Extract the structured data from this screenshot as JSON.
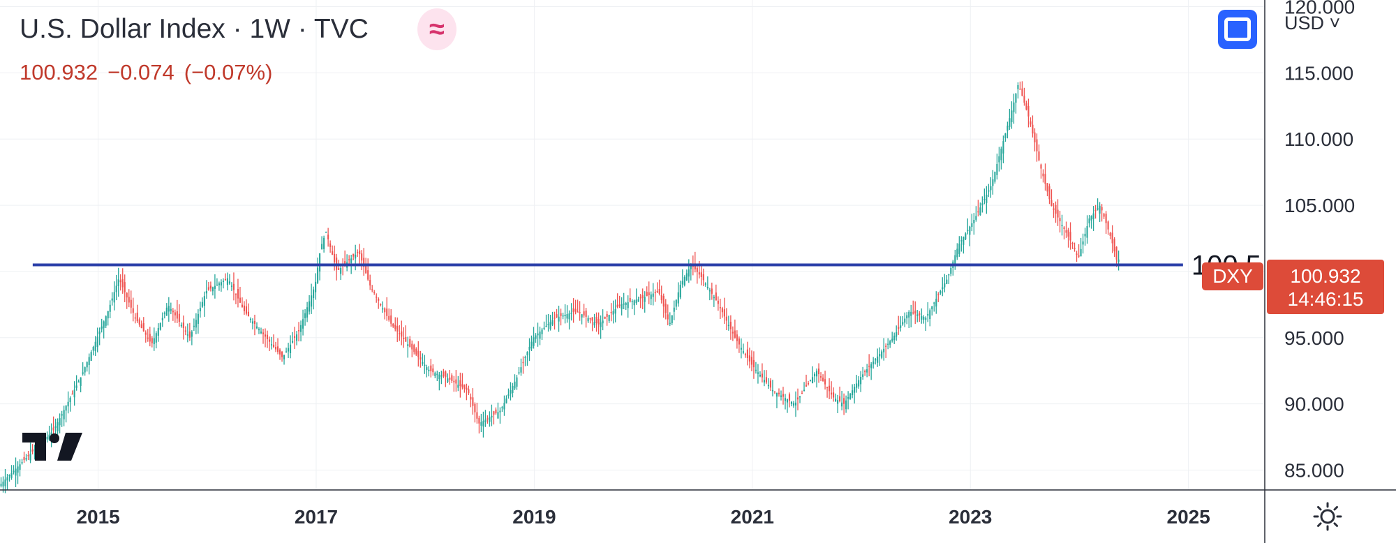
{
  "header": {
    "title": "U.S. Dollar Index · 1W · TVC",
    "quote": {
      "last": "100.932",
      "change": "−0.074",
      "change_pct": "(−0.07%)"
    },
    "wave_icon": "≈",
    "currency_selector": "USD ˅"
  },
  "icons": {
    "fullscreen": "fullscreen-icon",
    "settings": "sun-gear-icon",
    "logo": "tradingview-logo-icon"
  },
  "colors": {
    "up": "#26a69a",
    "down": "#ef5350",
    "level_line": "#2b3fa9",
    "price_tag": "#dd4b39",
    "accent": "#2962ff"
  },
  "chart_data": {
    "type": "candlestick",
    "timeframe": "1W",
    "symbol": "DXY",
    "x_range": [
      2014.1,
      2025.7
    ],
    "ylim": [
      83.5,
      120.5
    ],
    "x_ticks": [
      {
        "value": 2015,
        "label": "2015"
      },
      {
        "value": 2017,
        "label": "2017"
      },
      {
        "value": 2019,
        "label": "2019"
      },
      {
        "value": 2021,
        "label": "2021"
      },
      {
        "value": 2023,
        "label": "2023"
      },
      {
        "value": 2025,
        "label": "2025"
      }
    ],
    "y_ticks": [
      {
        "value": 85,
        "label": "85.000"
      },
      {
        "value": 90,
        "label": "90.000"
      },
      {
        "value": 95,
        "label": "95.000"
      },
      {
        "value": 100,
        "label": ""
      },
      {
        "value": 105,
        "label": "105.000"
      },
      {
        "value": 110,
        "label": "110.000"
      },
      {
        "value": 115,
        "label": "115.000"
      },
      {
        "value": 120,
        "label": "120.000"
      }
    ],
    "price_path": [
      [
        2014.1,
        83.8
      ],
      [
        2014.3,
        85.5
      ],
      [
        2014.6,
        88.0
      ],
      [
        2014.85,
        92.0
      ],
      [
        2015.1,
        97.0
      ],
      [
        2015.2,
        99.5
      ],
      [
        2015.35,
        96.5
      ],
      [
        2015.5,
        94.5
      ],
      [
        2015.65,
        97.5
      ],
      [
        2015.85,
        95.0
      ],
      [
        2016.0,
        98.5
      ],
      [
        2016.2,
        99.5
      ],
      [
        2016.35,
        97.0
      ],
      [
        2016.5,
        95.5
      ],
      [
        2016.7,
        93.5
      ],
      [
        2016.85,
        95.5
      ],
      [
        2017.0,
        99.0
      ],
      [
        2017.05,
        101.8
      ],
      [
        2017.1,
        103.0
      ],
      [
        2017.2,
        100.0
      ],
      [
        2017.4,
        101.5
      ],
      [
        2017.5,
        99.0
      ],
      [
        2017.7,
        96.0
      ],
      [
        2017.9,
        94.0
      ],
      [
        2018.05,
        92.5
      ],
      [
        2018.2,
        92.0
      ],
      [
        2018.4,
        91.0
      ],
      [
        2018.5,
        88.5
      ],
      [
        2018.7,
        89.5
      ],
      [
        2018.85,
        92.0
      ],
      [
        2019.0,
        95.0
      ],
      [
        2019.2,
        96.5
      ],
      [
        2019.4,
        97.0
      ],
      [
        2019.6,
        96.0
      ],
      [
        2019.8,
        97.5
      ],
      [
        2020.0,
        98.0
      ],
      [
        2020.15,
        98.5
      ],
      [
        2020.25,
        96.0
      ],
      [
        2020.35,
        99.0
      ],
      [
        2020.45,
        100.5
      ],
      [
        2020.55,
        99.5
      ],
      [
        2020.7,
        97.5
      ],
      [
        2020.85,
        95.0
      ],
      [
        2021.0,
        93.0
      ],
      [
        2021.2,
        91.0
      ],
      [
        2021.4,
        90.0
      ],
      [
        2021.6,
        92.5
      ],
      [
        2021.75,
        90.5
      ],
      [
        2021.85,
        90.0
      ],
      [
        2022.0,
        92.0
      ],
      [
        2022.15,
        93.5
      ],
      [
        2022.3,
        95.0
      ],
      [
        2022.45,
        97.0
      ],
      [
        2022.6,
        96.5
      ],
      [
        2022.8,
        99.5
      ],
      [
        2022.9,
        102.0
      ],
      [
        2023.05,
        104.0
      ],
      [
        2023.2,
        106.5
      ],
      [
        2023.3,
        109.5
      ],
      [
        2023.4,
        112.5
      ],
      [
        2023.45,
        114.2
      ],
      [
        2023.55,
        111.5
      ],
      [
        2023.65,
        108.0
      ],
      [
        2023.75,
        105.0
      ],
      [
        2023.85,
        103.5
      ],
      [
        2023.95,
        102.0
      ],
      [
        2024.0,
        101.0
      ],
      [
        2024.05,
        102.5
      ],
      [
        2024.1,
        104.0
      ],
      [
        2024.2,
        105.0
      ],
      [
        2024.3,
        102.5
      ],
      [
        2024.35,
        100.9
      ]
    ],
    "level_line": {
      "value": 100.5,
      "label": "100,5",
      "x_start": 2014.4,
      "x_end": 2024.95
    },
    "price_tag": {
      "symbol": "DXY",
      "value": "100.932",
      "countdown": "14:46:15"
    }
  }
}
